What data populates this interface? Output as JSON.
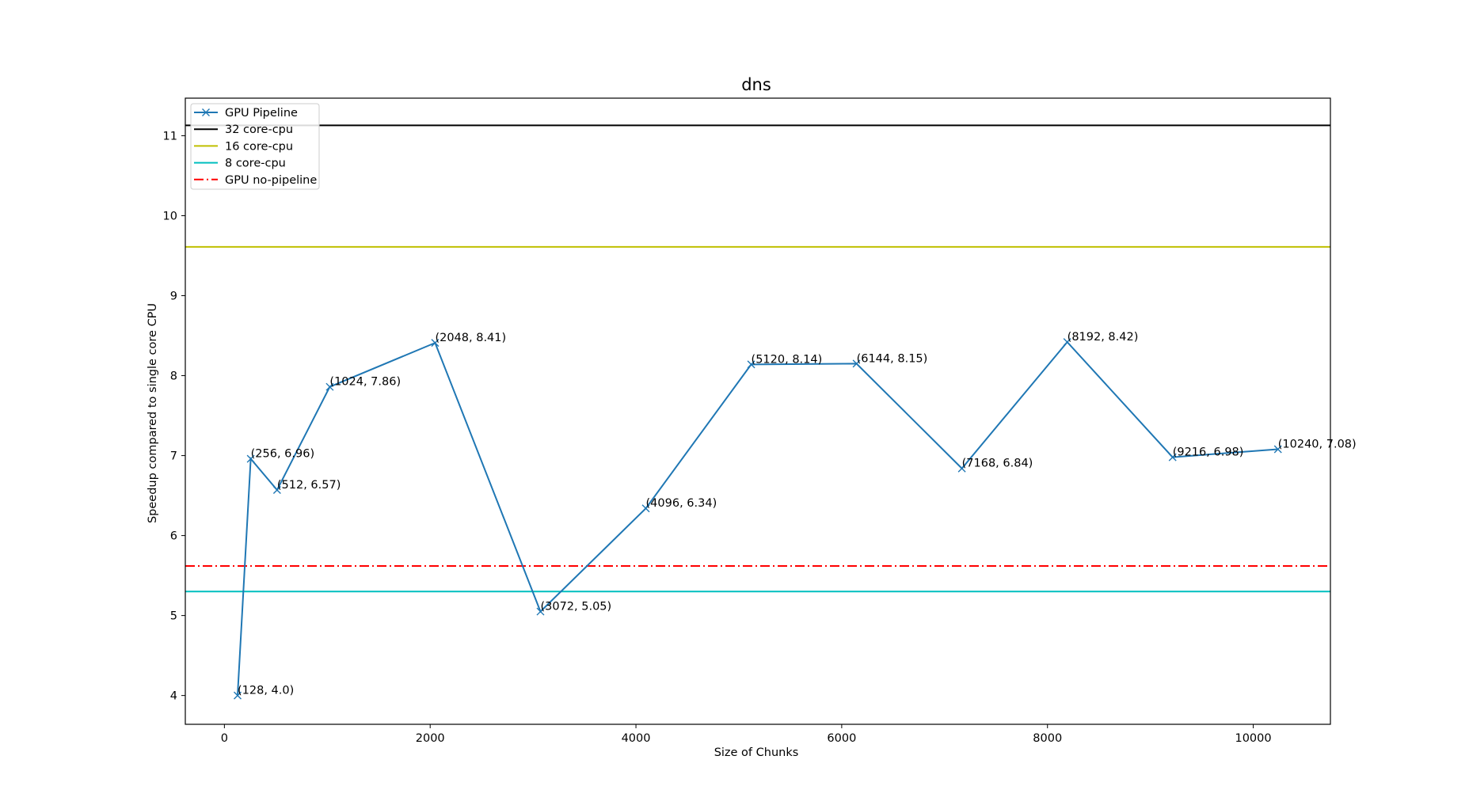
{
  "chart_data": {
    "type": "line",
    "title": "dns",
    "xlabel": "Size of Chunks",
    "ylabel": "Speedup compared to single core CPU",
    "xlim": [
      -380,
      10750
    ],
    "ylim": [
      3.64,
      11.47
    ],
    "xticks": [
      0,
      2000,
      4000,
      6000,
      8000,
      10000
    ],
    "yticks": [
      4,
      5,
      6,
      7,
      8,
      9,
      10,
      11
    ],
    "grid": false,
    "legend_position": "top-left",
    "series": [
      {
        "name": "GPU Pipeline",
        "color": "#1f77b4",
        "marker": "x",
        "x": [
          128,
          256,
          512,
          1024,
          2048,
          3072,
          4096,
          5120,
          6144,
          7168,
          8192,
          9216,
          10240
        ],
        "y": [
          4.0,
          6.96,
          6.57,
          7.86,
          8.41,
          5.05,
          6.34,
          8.14,
          8.15,
          6.84,
          8.42,
          6.98,
          7.08
        ],
        "labels": [
          "(128, 4.0)",
          "(256, 6.96)",
          "(512, 6.57)",
          "(1024, 7.86)",
          "(2048, 8.41)",
          "(3072, 5.05)",
          "(4096, 6.34)",
          "(5120, 8.14)",
          "(6144, 8.15)",
          "(7168, 6.84)",
          "(8192, 8.42)",
          "(9216, 6.98)",
          "(10240, 7.08)"
        ]
      }
    ],
    "reference_lines": [
      {
        "name": "32 core-cpu",
        "y": 11.13,
        "color": "#000000",
        "style": "solid"
      },
      {
        "name": "16 core-cpu",
        "y": 9.61,
        "color": "#bfbf00",
        "style": "solid"
      },
      {
        "name": "8 core-cpu",
        "y": 5.3,
        "color": "#00bfbf",
        "style": "solid"
      },
      {
        "name": "GPU no-pipeline",
        "y": 5.62,
        "color": "#ff0000",
        "style": "dashdot"
      }
    ],
    "legend_order": [
      "GPU Pipeline",
      "32 core-cpu",
      "16 core-cpu",
      "8 core-cpu",
      "GPU no-pipeline"
    ]
  }
}
